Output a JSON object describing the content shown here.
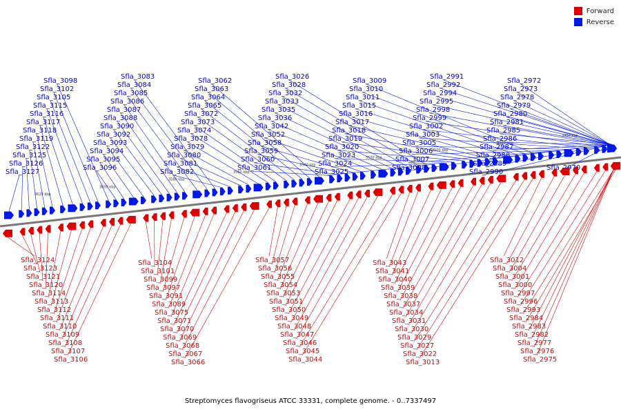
{
  "legend": {
    "forward_label": "Forward",
    "reverse_label": "Reverse",
    "forward_color": "#e00000",
    "reverse_color": "#0018e8"
  },
  "caption": "Streptomyces flavogriseus ATCC 33331, complete genome. - 0..7337497",
  "scale_ticks": [
    "3620 kbp",
    "3600 kbp",
    "3580 kbp",
    "3560 kbp",
    "3540 kbp",
    "3520 kbp",
    "3500 kbp",
    "3480 kbp",
    "3460 kbp"
  ],
  "reverse_genes": [
    "Sfla_3127",
    "Sfla_3126",
    "Sfla_3125",
    "Sfla_3122",
    "Sfla_3119",
    "Sfla_3118",
    "Sfla_3117",
    "Sfla_3116",
    "Sfla_3115",
    "Sfla_3105",
    "Sfla_3102",
    "Sfla_3098",
    "Sfla_3096",
    "Sfla_3095",
    "Sfla_3094",
    "Sfla_3093",
    "Sfla_3092",
    "Sfla_3090",
    "Sfla_3088",
    "Sfla_3087",
    "Sfla_3086",
    "Sfla_3085",
    "Sfla_3084",
    "Sfla_3083",
    "Sfla_3082",
    "Sfla_3081",
    "Sfla_3080",
    "Sfla_3079",
    "Sfla_3078",
    "Sfla_3074",
    "Sfla_3073",
    "Sfla_3072",
    "Sfla_3065",
    "Sfla_3064",
    "Sfla_3063",
    "Sfla_3062",
    "Sfla_3061",
    "Sfla_3060",
    "Sfla_3059",
    "Sfla_3058",
    "Sfla_3052",
    "Sfla_3042",
    "Sfla_3036",
    "Sfla_3035",
    "Sfla_3033",
    "Sfla_3032",
    "Sfla_3028",
    "Sfla_3026",
    "Sfla_3025",
    "Sfla_3024",
    "Sfla_3023",
    "Sfla_3020",
    "Sfla_3019",
    "Sfla_3018",
    "Sfla_3017",
    "Sfla_3016",
    "Sfla_3015",
    "Sfla_3011",
    "Sfla_3010",
    "Sfla_3009",
    "Sfla_3008",
    "Sfla_3007",
    "Sfla_3006",
    "Sfla_3005",
    "Sfla_3003",
    "Sfla_3002",
    "Sfla_2999",
    "Sfla_2998",
    "Sfla_2995",
    "Sfla_2994",
    "Sfla_2992",
    "Sfla_2991",
    "Sfla_2990",
    "Sfla_2989",
    "Sfla_2988",
    "Sfla_2987",
    "Sfla_2986",
    "Sfla_2985",
    "Sfla_2981",
    "Sfla_2980",
    "Sfla_2979",
    "Sfla_2978",
    "Sfla_2973",
    "Sfla_2972",
    "Sfla_2970"
  ],
  "forward_genes": [
    "Sfla_3124",
    "Sfla_3123",
    "Sfla_3121",
    "Sfla_3120",
    "Sfla_3114",
    "Sfla_3113",
    "Sfla_3112",
    "Sfla_3111",
    "Sfla_3110",
    "Sfla_3109",
    "Sfla_3108",
    "Sfla_3107",
    "Sfla_3106",
    "Sfla_3104",
    "Sfla_3101",
    "Sfla_3099",
    "Sfla_3097",
    "Sfla_3091",
    "Sfla_3089",
    "Sfla_3075",
    "Sfla_3071",
    "Sfla_3070",
    "Sfla_3069",
    "Sfla_3068",
    "Sfla_3067",
    "Sfla_3066",
    "Sfla_3057",
    "Sfla_3056",
    "Sfla_3055",
    "Sfla_3054",
    "Sfla_3053",
    "Sfla_3051",
    "Sfla_3050",
    "Sfla_3049",
    "Sfla_3048",
    "Sfla_3047",
    "Sfla_3046",
    "Sfla_3045",
    "Sfla_3044",
    "Sfla_3043",
    "Sfla_3041",
    "Sfla_3040",
    "Sfla_3039",
    "Sfla_3038",
    "Sfla_3037",
    "Sfla_3034",
    "Sfla_3031",
    "Sfla_3030",
    "Sfla_3029",
    "Sfla_3027",
    "Sfla_3022",
    "Sfla_3013",
    "Sfla_3012",
    "Sfla_3004",
    "Sfla_3001",
    "Sfla_3000",
    "Sfla_2997",
    "Sfla_2996",
    "Sfla_2993",
    "Sfla_2984",
    "Sfla_2983",
    "Sfla_2982",
    "Sfla_2977",
    "Sfla_2976",
    "Sfla_2975"
  ]
}
